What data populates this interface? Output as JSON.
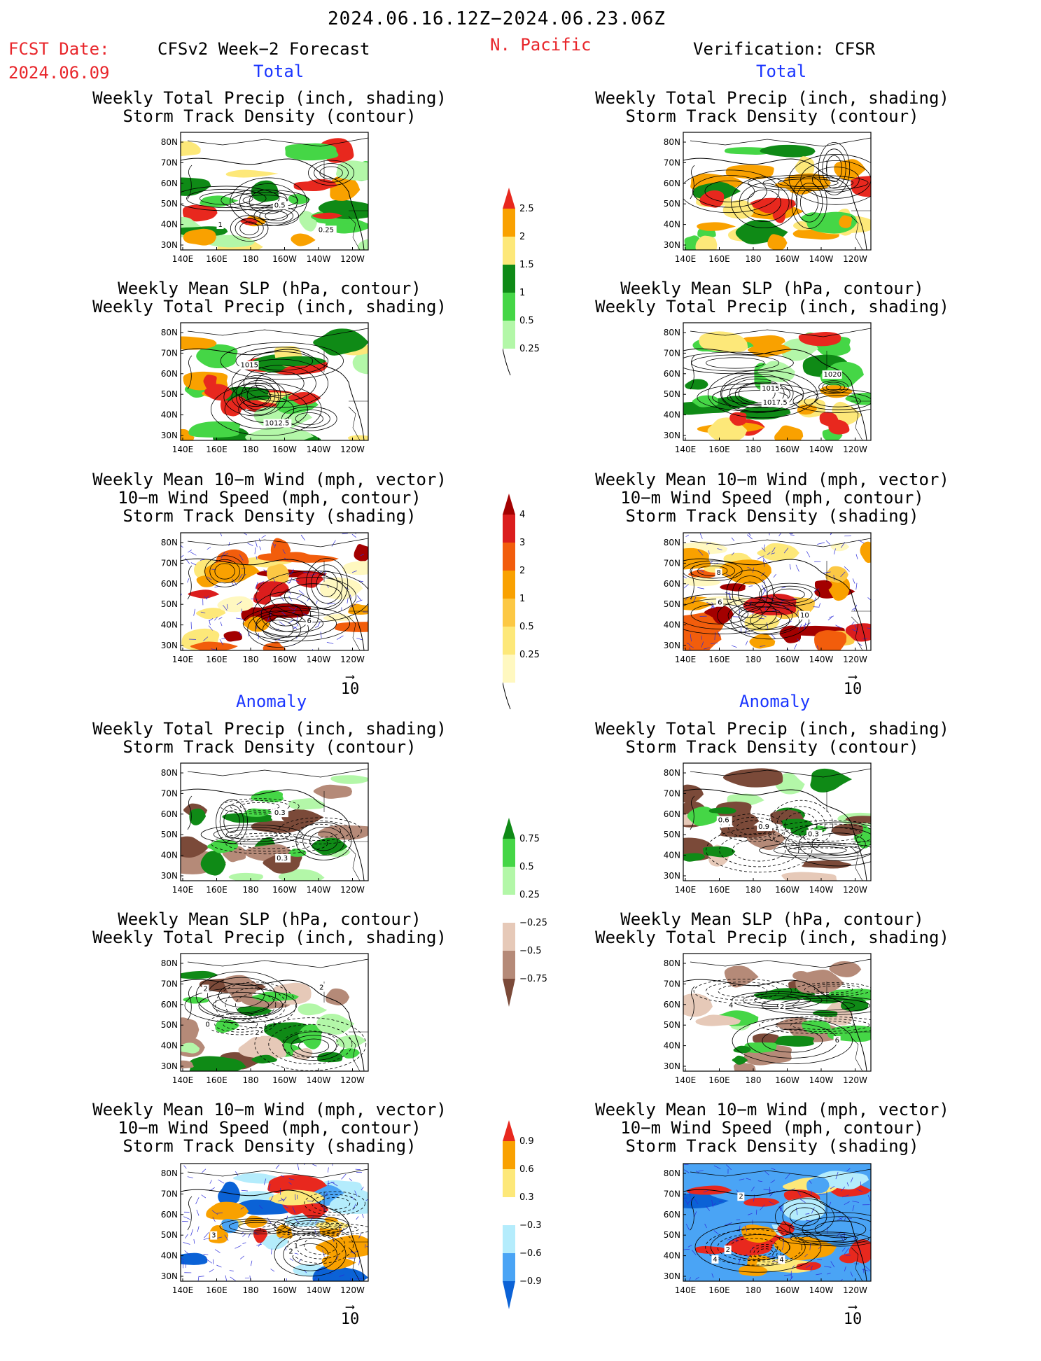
{
  "header": {
    "period": "2024.06.16.12Z−2024.06.23.06Z",
    "region": "N. Pacific",
    "fcst_label": "FCST Date:",
    "fcst_date": "2024.06.09",
    "left_title": "CFSv2 Week−2 Forecast",
    "right_title": "Verification: CFSR",
    "section_total": "Total",
    "section_anomaly": "Anomaly"
  },
  "axes": {
    "lat_ticks": [
      "80N",
      "70N",
      "60N",
      "50N",
      "40N",
      "30N"
    ],
    "lon_ticks": [
      "140E",
      "160E",
      "180",
      "160W",
      "140W",
      "120W"
    ]
  },
  "titles": {
    "precip_track": [
      "Weekly Total Precip (inch, shading)",
      "Storm Track Density (contour)"
    ],
    "slp_precip": [
      "Weekly Mean SLP (hPa, contour)",
      "Weekly Total Precip (inch, shading)"
    ],
    "wind_track": [
      "Weekly Mean 10−m Wind (mph, vector)",
      "10−m Wind Speed (mph, contour)",
      "Storm Track Density (shading)"
    ]
  },
  "vector_ref": "10",
  "contour_labels": {
    "f_total_precip": [
      "1",
      "0.5",
      "0.25"
    ],
    "f_total_slp": [
      "1015",
      "1012.5"
    ],
    "f_total_wind": [
      "6"
    ],
    "v_total_slp": [
      "1020",
      "1017.5",
      "1015"
    ],
    "v_total_wind": [
      "6",
      "10",
      "8"
    ],
    "f_anom_precip": [
      "0.3",
      "0.3"
    ],
    "f_anom_slp": [
      "2",
      "2",
      "0",
      "2"
    ],
    "v_anom_precip": [
      "0.9",
      "0.6",
      "0.3"
    ],
    "v_anom_slp": [
      "6",
      "4",
      "2"
    ],
    "v_anom_wind": [
      "2",
      "4",
      "2",
      "4"
    ],
    "f_anom_wind": [
      "1",
      "2",
      "3"
    ]
  },
  "colorbars": {
    "precip_total": {
      "labels": [
        "2.5",
        "2",
        "1.5",
        "1",
        "0.5",
        "0.25"
      ],
      "colors": [
        "#e8281e",
        "#f9a100",
        "#fde879",
        "#0f8a16",
        "#45d646",
        "#b3f7a8"
      ]
    },
    "track_total": {
      "labels": [
        "4",
        "3",
        "2",
        "1",
        "0.5",
        "0.25"
      ],
      "colors": [
        "#a30000",
        "#db1d1d",
        "#f25d0c",
        "#f9a100",
        "#fcc844",
        "#fde879",
        "#fff8c0"
      ]
    },
    "precip_anom": {
      "labels": [
        "0.75",
        "0.5",
        "0.25",
        "−0.25",
        "−0.5",
        "−0.75"
      ],
      "colors": [
        "#0f8a16",
        "#45d646",
        "#b3f7a8",
        "#ffffff",
        "#e6c9b8",
        "#b58a78",
        "#7b4a39"
      ]
    },
    "track_anom": {
      "labels": [
        "0.9",
        "0.6",
        "0.3",
        "−0.3",
        "−0.6",
        "−0.9"
      ],
      "colors": [
        "#e8281e",
        "#f9a100",
        "#fde879",
        "#ffffff",
        "#b4ecfc",
        "#4aa4f5",
        "#0b62d6"
      ]
    }
  }
}
